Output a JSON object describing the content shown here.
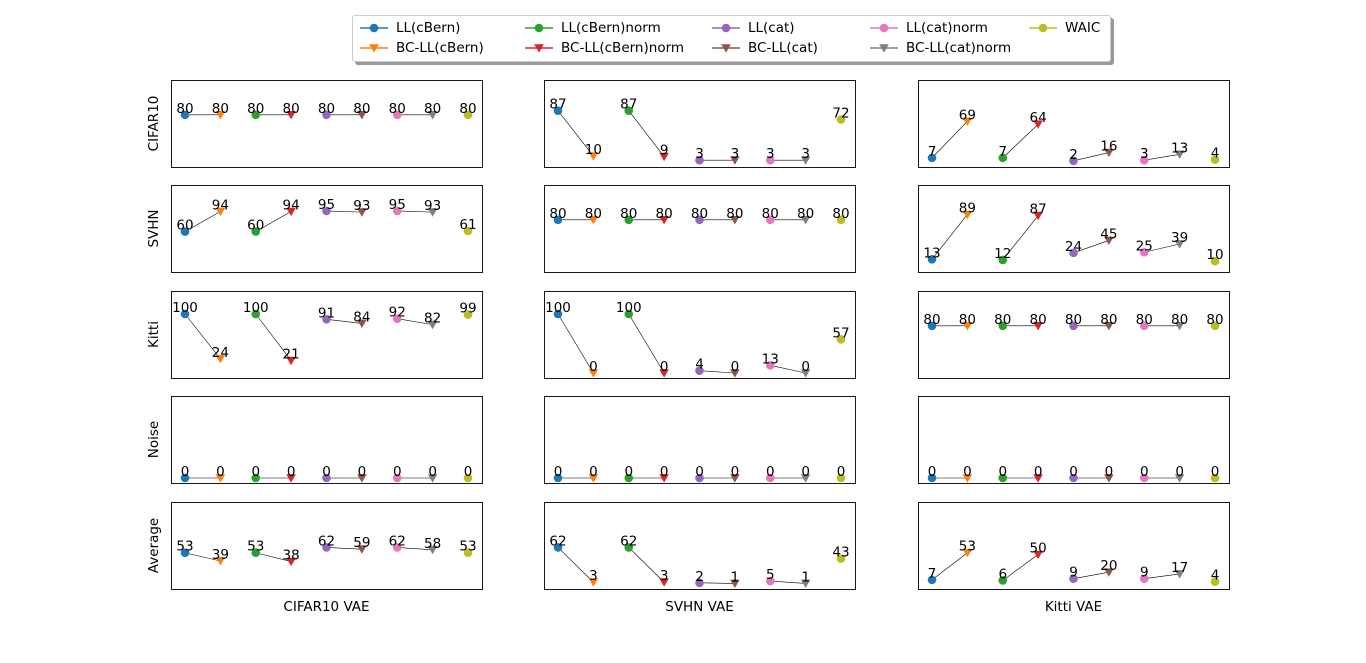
{
  "chart_data": {
    "type": "scatter",
    "layout": "5x3 grid of small multiples",
    "row_labels": [
      "CIFAR10",
      "SVHN",
      "Kitti",
      "Noise",
      "Average"
    ],
    "col_labels": [
      "CIFAR10 VAE",
      "SVHN VAE",
      "Kitti VAE"
    ],
    "methods": [
      {
        "name": "LL(cBern)",
        "color": "#1f77b4",
        "marker": "circle"
      },
      {
        "name": "BC-LL(cBern)",
        "color": "#ff7f0e",
        "marker": "triangle-down"
      },
      {
        "name": "LL(cBern)norm",
        "color": "#2ca02c",
        "marker": "circle"
      },
      {
        "name": "BC-LL(cBern)norm",
        "color": "#d62728",
        "marker": "triangle-down"
      },
      {
        "name": "LL(cat)",
        "color": "#9467bd",
        "marker": "circle"
      },
      {
        "name": "BC-LL(cat)",
        "color": "#8c564b",
        "marker": "triangle-down"
      },
      {
        "name": "LL(cat)norm",
        "color": "#e377c2",
        "marker": "circle"
      },
      {
        "name": "BC-LL(cat)norm",
        "color": "#7f7f7f",
        "marker": "triangle-down"
      },
      {
        "name": "WAIC",
        "color": "#bcbd22",
        "marker": "circle"
      }
    ],
    "connected_pairs": [
      [
        0,
        1
      ],
      [
        2,
        3
      ],
      [
        4,
        5
      ],
      [
        6,
        7
      ]
    ],
    "ylim": [
      0,
      100
    ],
    "axis_ticks": false,
    "legend_placement": "top-center, 5 columns",
    "panels": [
      [
        {
          "values": [
            80,
            80,
            80,
            80,
            80,
            80,
            80,
            80,
            80
          ]
        },
        {
          "values": [
            87,
            10,
            87,
            9,
            3,
            3,
            3,
            3,
            72
          ]
        },
        {
          "values": [
            7,
            69,
            7,
            64,
            2,
            16,
            3,
            13,
            4
          ]
        }
      ],
      [
        {
          "values": [
            60,
            94,
            60,
            94,
            95,
            93,
            95,
            93,
            61
          ]
        },
        {
          "values": [
            80,
            80,
            80,
            80,
            80,
            80,
            80,
            80,
            80
          ]
        },
        {
          "values": [
            13,
            89,
            12,
            87,
            24,
            45,
            25,
            39,
            10
          ]
        }
      ],
      [
        {
          "values": [
            100,
            24,
            100,
            21,
            91,
            84,
            92,
            82,
            99
          ]
        },
        {
          "values": [
            100,
            0,
            100,
            0,
            4,
            0,
            13,
            0,
            57
          ]
        },
        {
          "values": [
            80,
            80,
            80,
            80,
            80,
            80,
            80,
            80,
            80
          ]
        }
      ],
      [
        {
          "values": [
            0,
            0,
            0,
            0,
            0,
            0,
            0,
            0,
            0
          ]
        },
        {
          "values": [
            0,
            0,
            0,
            0,
            0,
            0,
            0,
            0,
            0
          ]
        },
        {
          "values": [
            0,
            0,
            0,
            0,
            0,
            0,
            0,
            0,
            0
          ]
        }
      ],
      [
        {
          "values": [
            53,
            39,
            53,
            38,
            62,
            59,
            62,
            58,
            53
          ]
        },
        {
          "values": [
            62,
            3,
            62,
            3,
            2,
            1,
            5,
            1,
            43
          ]
        },
        {
          "values": [
            7,
            53,
            6,
            50,
            9,
            20,
            9,
            17,
            4
          ]
        }
      ]
    ]
  }
}
